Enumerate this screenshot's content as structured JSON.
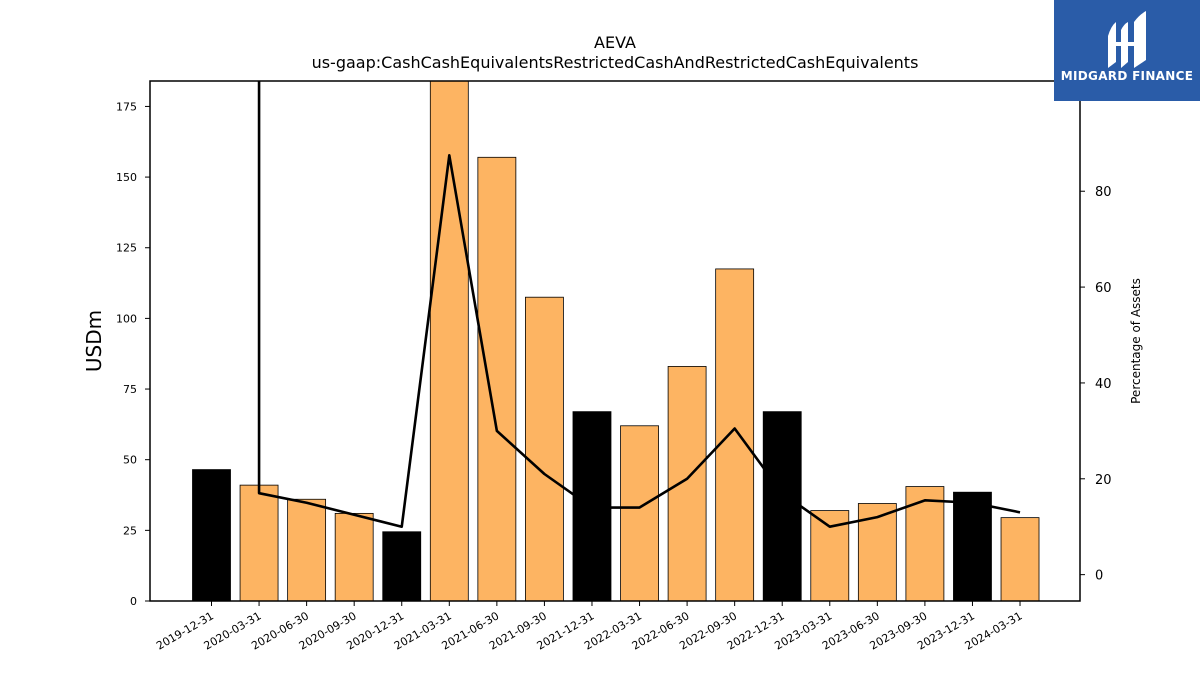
{
  "chart_data": {
    "type": "bar",
    "title": "AEVA",
    "subtitle": "us-gaap:CashCashEquivalentsRestrictedCashAndRestrictedCashEquivalents",
    "ylabel": "USDm",
    "y2label": "Percentage of Assets",
    "ylim": [
      0,
      184
    ],
    "y2lim": [
      -5.5,
      103
    ],
    "yticks": [
      0,
      25,
      50,
      75,
      100,
      125,
      150,
      175
    ],
    "y2ticks": [
      0,
      20,
      40,
      60,
      80
    ],
    "categories": [
      "2019-12-31",
      "2020-03-31",
      "2020-06-30",
      "2020-09-30",
      "2020-12-31",
      "2021-03-31",
      "2021-06-30",
      "2021-09-30",
      "2021-12-31",
      "2022-03-31",
      "2022-06-30",
      "2022-09-30",
      "2022-12-31",
      "2023-03-31",
      "2023-06-30",
      "2023-09-30",
      "2023-12-31",
      "2024-03-31"
    ],
    "series": [
      {
        "kind": "bar",
        "values": [
          46.5,
          41,
          36,
          31,
          24.5,
          185,
          157,
          107.5,
          67,
          62,
          83,
          117.5,
          67,
          32,
          34.5,
          40.5,
          38.5,
          29.5
        ],
        "colors": [
          "#000000",
          "#fdb462",
          "#fdb462",
          "#fdb462",
          "#000000",
          "#fdb462",
          "#fdb462",
          "#fdb462",
          "#000000",
          "#fdb462",
          "#fdb462",
          "#fdb462",
          "#000000",
          "#fdb462",
          "#fdb462",
          "#fdb462",
          "#000000",
          "#fdb462"
        ]
      },
      {
        "kind": "line",
        "axis": "right",
        "values": [
          null,
          17,
          15,
          12.5,
          10,
          87.5,
          30,
          21,
          14,
          14,
          20,
          30.5,
          17,
          10,
          12,
          15.5,
          15,
          13
        ]
      }
    ],
    "grid": false,
    "legend": "none"
  },
  "logo": {
    "text": "MIDGARD FINANCE",
    "bg_color": "#2a5ca8"
  }
}
